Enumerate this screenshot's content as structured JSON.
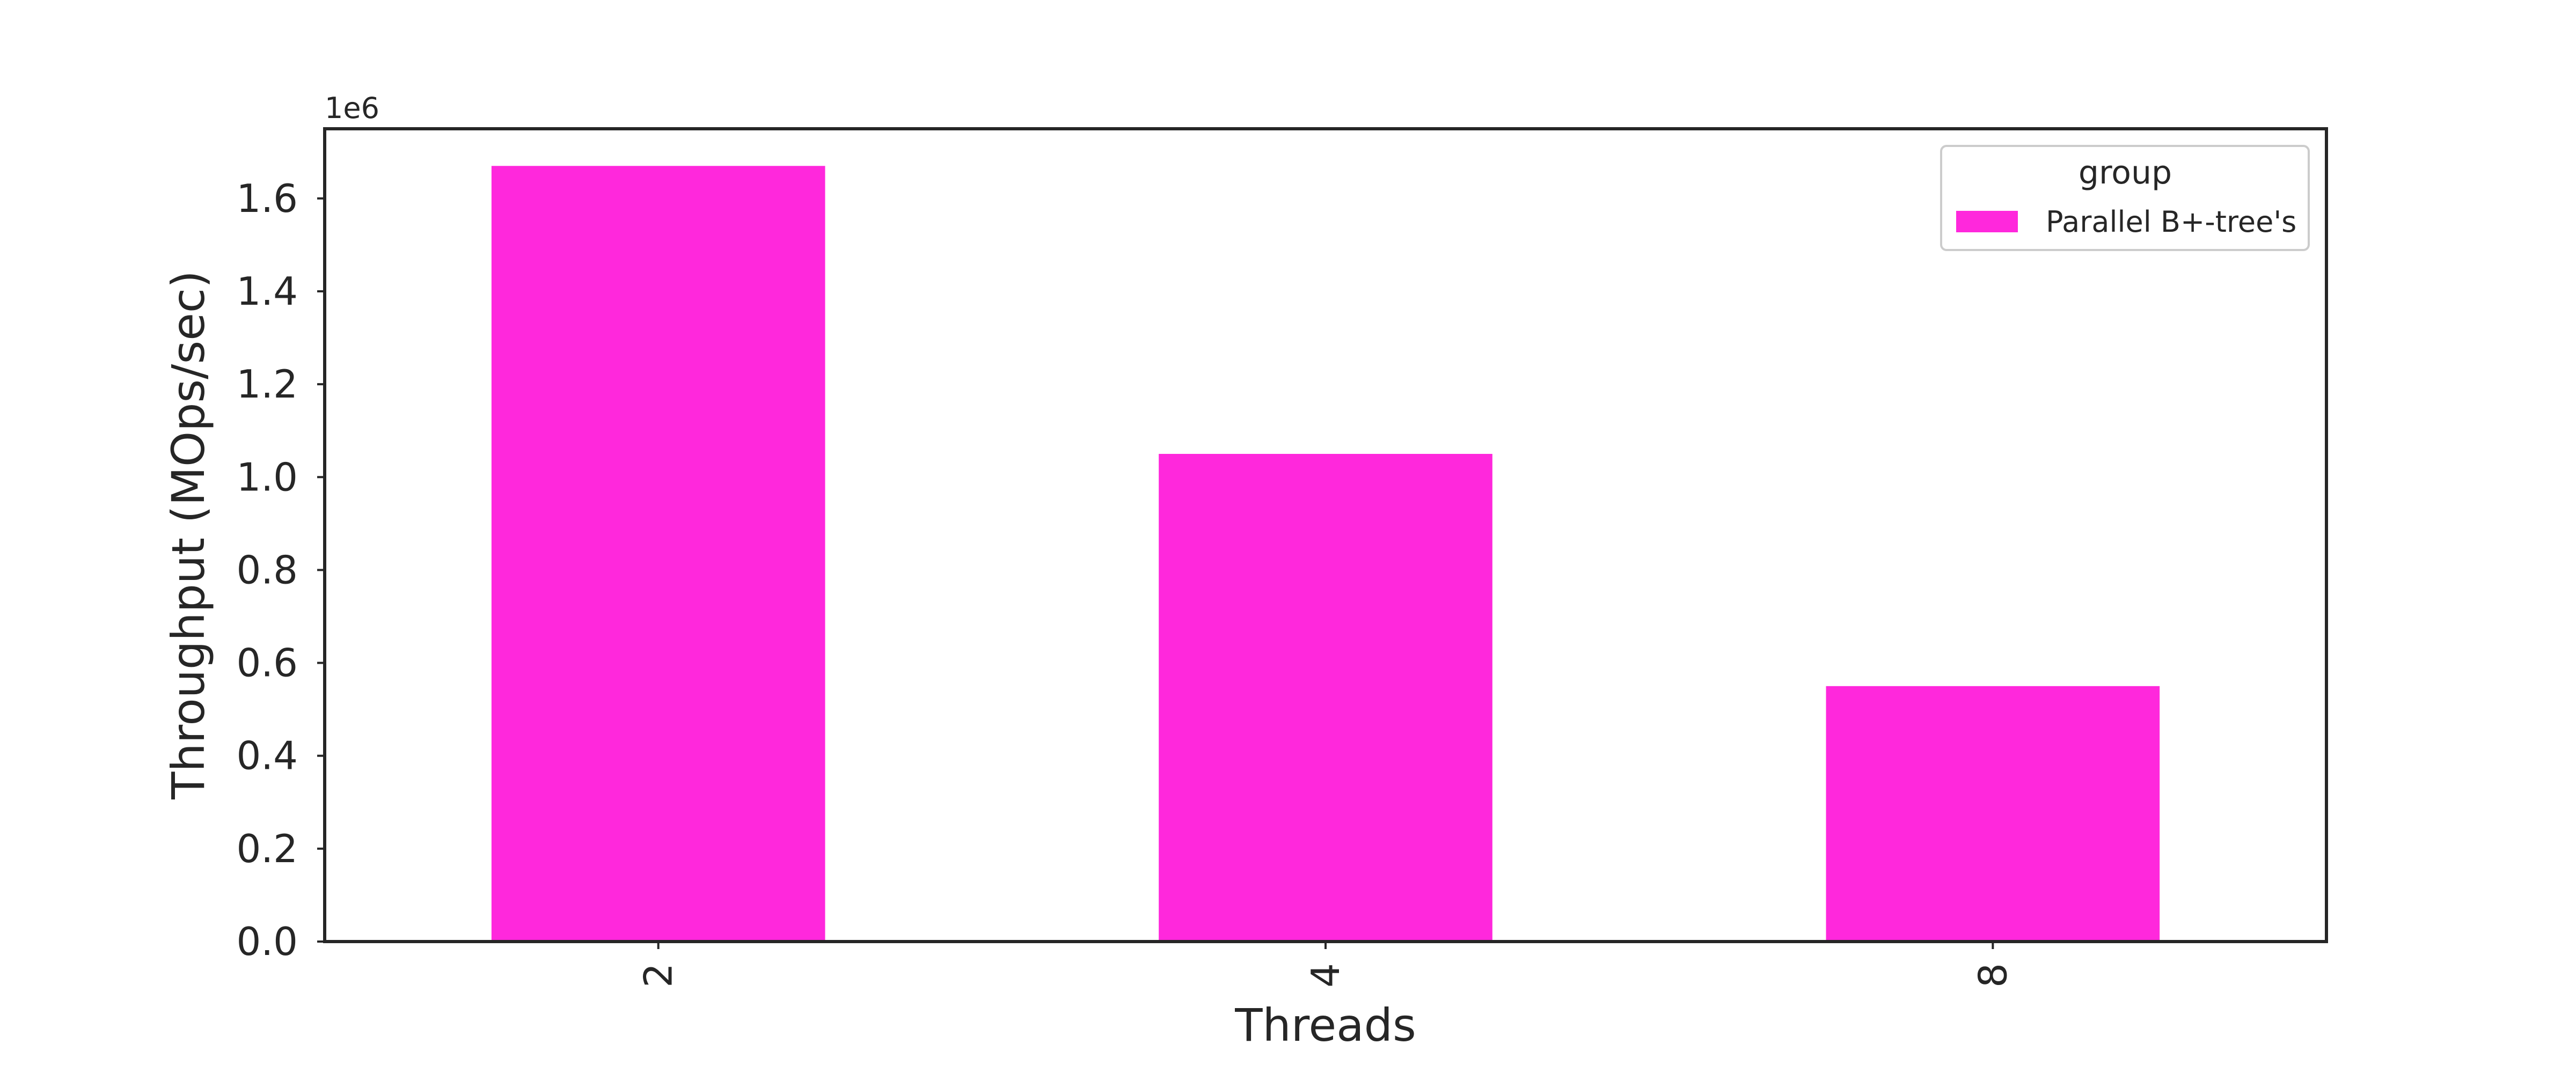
{
  "chart_data": {
    "type": "bar",
    "categories": [
      "2",
      "4",
      "8"
    ],
    "series": [
      {
        "name": "Parallel B+-tree's",
        "color": "#ff28dc",
        "values": [
          1670000,
          1050000,
          550000
        ]
      }
    ],
    "xlabel": "Threads",
    "ylabel": "Throughput (MOps/sec)",
    "ylim": [
      0,
      1750000
    ],
    "y_ticks": [
      0,
      200000,
      400000,
      600000,
      800000,
      1000000,
      1200000,
      1400000,
      1600000
    ],
    "y_tick_labels": [
      "0.0",
      "0.2",
      "0.4",
      "0.6",
      "0.8",
      "1.0",
      "1.2",
      "1.4",
      "1.6"
    ],
    "y_offset_text": "1e6",
    "legend": {
      "title": "group",
      "position": "top-right"
    },
    "grid": false,
    "x_tick_rotation": "vertical"
  }
}
